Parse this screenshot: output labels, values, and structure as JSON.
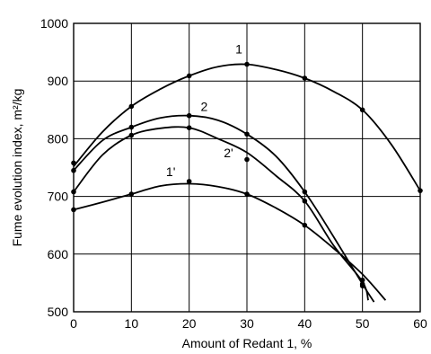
{
  "chart_data": {
    "type": "line",
    "title": "",
    "xlabel": "Amount of Redant 1, %",
    "ylabel": "Fume evolution index, m²/kg",
    "xlim": [
      0,
      60
    ],
    "ylim": [
      500,
      1000
    ],
    "xticks": [
      "0",
      "10",
      "20",
      "30",
      "40",
      "50",
      "60"
    ],
    "yticks": [
      "500",
      "600",
      "700",
      "800",
      "900",
      "1000"
    ],
    "grid": true,
    "legend": "none",
    "series": [
      {
        "name": "1",
        "points": [
          [
            0,
            758
          ],
          [
            10,
            856
          ],
          [
            20,
            909
          ],
          [
            30,
            929
          ],
          [
            40,
            905
          ],
          [
            50,
            850
          ],
          [
            60,
            710
          ]
        ],
        "curve": [
          [
            0,
            752
          ],
          [
            5,
            812
          ],
          [
            10,
            856
          ],
          [
            15,
            886
          ],
          [
            20,
            909
          ],
          [
            25,
            925
          ],
          [
            30,
            929
          ],
          [
            35,
            920
          ],
          [
            40,
            905
          ],
          [
            45,
            882
          ],
          [
            50,
            850
          ],
          [
            55,
            790
          ],
          [
            60,
            710
          ]
        ]
      },
      {
        "name": "2",
        "points": [
          [
            0,
            745
          ],
          [
            10,
            820
          ],
          [
            20,
            840
          ],
          [
            30,
            808
          ],
          [
            40,
            708
          ],
          [
            50,
            548
          ]
        ],
        "curve": [
          [
            0,
            745
          ],
          [
            5,
            797
          ],
          [
            10,
            820
          ],
          [
            15,
            836
          ],
          [
            20,
            840
          ],
          [
            25,
            832
          ],
          [
            30,
            808
          ],
          [
            35,
            770
          ],
          [
            40,
            708
          ],
          [
            45,
            630
          ],
          [
            50,
            548
          ],
          [
            52,
            517
          ]
        ]
      },
      {
        "name": "2'",
        "points": [
          [
            0,
            708
          ],
          [
            10,
            806
          ],
          [
            20,
            819
          ],
          [
            30,
            764
          ],
          [
            40,
            692
          ],
          [
            50,
            555
          ]
        ],
        "curve": [
          [
            0,
            708
          ],
          [
            5,
            772
          ],
          [
            10,
            806
          ],
          [
            15,
            818
          ],
          [
            20,
            819
          ],
          [
            25,
            800
          ],
          [
            30,
            776
          ],
          [
            35,
            736
          ],
          [
            40,
            692
          ],
          [
            45,
            615
          ],
          [
            50,
            552
          ],
          [
            51,
            520
          ]
        ]
      },
      {
        "name": "1'",
        "points": [
          [
            0,
            677
          ],
          [
            10,
            704
          ],
          [
            20,
            726
          ],
          [
            30,
            704
          ],
          [
            40,
            650
          ],
          [
            50,
            545
          ]
        ],
        "curve": [
          [
            0,
            677
          ],
          [
            5,
            690
          ],
          [
            10,
            704
          ],
          [
            15,
            718
          ],
          [
            20,
            722
          ],
          [
            25,
            717
          ],
          [
            30,
            704
          ],
          [
            35,
            680
          ],
          [
            40,
            650
          ],
          [
            45,
            610
          ],
          [
            50,
            565
          ],
          [
            54,
            520
          ]
        ]
      }
    ]
  }
}
